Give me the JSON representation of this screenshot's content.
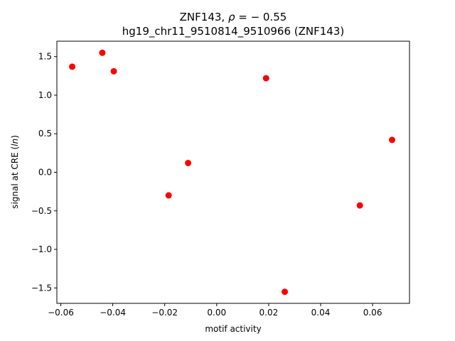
{
  "chart_data": {
    "type": "scatter",
    "title_line1_prefix": "ZNF143, ",
    "title_line1_rho": "ρ",
    "title_line1_suffix": " = − 0.55",
    "title_line2": "hg19_chr11_9510814_9510966 (ZNF143)",
    "xlabel": "motif activity",
    "ylabel_prefix": "signal at CRE (",
    "ylabel_italic": "ln",
    "ylabel_suffix": ")",
    "xlim": [
      -0.0615,
      0.0742
    ],
    "ylim": [
      -1.7,
      1.7
    ],
    "x_ticks": [
      -0.06,
      -0.04,
      -0.02,
      0.0,
      0.02,
      0.04,
      0.06
    ],
    "x_tick_labels": [
      "−0.06",
      "−0.04",
      "−0.02",
      "0.00",
      "0.02",
      "0.04",
      "0.06"
    ],
    "y_ticks": [
      -1.5,
      -1.0,
      -0.5,
      0.0,
      0.5,
      1.0,
      1.5
    ],
    "y_tick_labels": [
      "−1.5",
      "−1.0",
      "−0.5",
      "0.0",
      "0.5",
      "1.0",
      "1.5"
    ],
    "marker_color": "#ff0000",
    "points": [
      {
        "x": -0.0556,
        "y": 1.37
      },
      {
        "x": -0.044,
        "y": 1.55
      },
      {
        "x": -0.0396,
        "y": 1.31
      },
      {
        "x": -0.0185,
        "y": -0.3
      },
      {
        "x": -0.011,
        "y": 0.12
      },
      {
        "x": 0.019,
        "y": 1.22
      },
      {
        "x": 0.0262,
        "y": -1.55
      },
      {
        "x": 0.0551,
        "y": -0.43
      },
      {
        "x": 0.0675,
        "y": 0.42
      }
    ]
  }
}
